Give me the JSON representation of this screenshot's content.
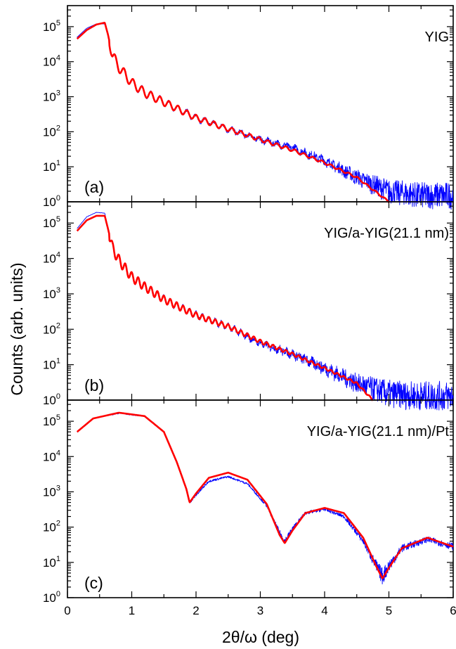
{
  "figure": {
    "ylabel": "Counts (arb. units)",
    "xlabel": "2θ/ω (deg)",
    "x_ticks": [
      "0",
      "1",
      "2",
      "3",
      "4",
      "5",
      "6"
    ],
    "y_ticks": [
      {
        "base": "10",
        "exp": "0"
      },
      {
        "base": "10",
        "exp": "1"
      },
      {
        "base": "10",
        "exp": "2"
      },
      {
        "base": "10",
        "exp": "3"
      },
      {
        "base": "10",
        "exp": "4"
      },
      {
        "base": "10",
        "exp": "5"
      }
    ]
  },
  "colors": {
    "measured": "#0000ff",
    "fit": "#ff0000",
    "axis": "#000000"
  },
  "chart_data": [
    {
      "type": "line",
      "panel_label": "(a)",
      "sample_label": "YIG",
      "xlim": [
        0,
        6
      ],
      "ylim": [
        1,
        600000
      ],
      "y_scale": "log",
      "grid": false,
      "critical_angle": 0.6,
      "fringe_period": 0.14,
      "series": [
        {
          "role": "measured",
          "x": [
            0.15,
            0.3,
            0.45,
            0.58,
            0.63,
            0.7,
            0.8,
            1.0,
            1.2,
            1.5,
            2.0,
            2.5,
            3.0,
            3.5,
            4.0,
            4.5,
            5.0,
            5.5,
            6.0
          ],
          "y": [
            50000,
            90000,
            120000,
            120000,
            60000,
            15000,
            7000,
            2500,
            1300,
            700,
            250,
            120,
            60,
            35,
            15,
            5,
            2,
            1.5,
            1.5
          ]
        },
        {
          "role": "fit",
          "x": [
            0.15,
            0.3,
            0.45,
            0.58,
            0.63,
            0.7,
            0.8,
            1.0,
            1.2,
            1.5,
            2.0,
            2.5,
            3.0,
            3.5,
            4.0,
            4.5,
            5.0
          ],
          "y": [
            45000,
            80000,
            115000,
            130000,
            60000,
            15000,
            7000,
            2500,
            1300,
            700,
            250,
            120,
            60,
            30,
            13,
            5,
            1
          ]
        }
      ]
    },
    {
      "type": "line",
      "panel_label": "(b)",
      "sample_label": "YIG/a-YIG(21.1 nm)",
      "xlim": [
        0,
        6
      ],
      "ylim": [
        1,
        600000
      ],
      "y_scale": "log",
      "grid": false,
      "critical_angle": 0.6,
      "fringe_period": 0.1,
      "series": [
        {
          "role": "measured",
          "x": [
            0.15,
            0.3,
            0.45,
            0.58,
            0.63,
            0.7,
            0.8,
            1.0,
            1.2,
            1.5,
            2.0,
            2.5,
            3.0,
            3.5,
            4.0,
            4.5,
            5.0,
            5.5,
            6.0
          ],
          "y": [
            70000,
            150000,
            200000,
            190000,
            70000,
            20000,
            9000,
            3000,
            1600,
            700,
            250,
            120,
            40,
            20,
            8,
            3,
            1.5,
            1.3,
            1.3
          ]
        },
        {
          "role": "fit",
          "x": [
            0.15,
            0.3,
            0.45,
            0.58,
            0.63,
            0.7,
            0.8,
            1.0,
            1.2,
            1.5,
            2.0,
            2.5,
            3.0,
            3.5,
            4.0,
            4.5,
            4.75
          ],
          "y": [
            60000,
            120000,
            160000,
            160000,
            70000,
            20000,
            9000,
            3000,
            1600,
            700,
            250,
            120,
            45,
            20,
            8,
            3,
            1
          ]
        }
      ]
    },
    {
      "type": "line",
      "panel_label": "(c)",
      "sample_label": "YIG/a-YIG(21.1 nm)/Pt",
      "xlim": [
        0,
        6
      ],
      "ylim": [
        1,
        600000
      ],
      "y_scale": "log",
      "grid": false,
      "series": [
        {
          "role": "measured",
          "x": [
            0.15,
            0.4,
            0.8,
            1.2,
            1.5,
            1.7,
            1.85,
            1.9,
            2.0,
            2.2,
            2.5,
            2.8,
            3.1,
            3.3,
            3.38,
            3.5,
            3.7,
            4.0,
            4.3,
            4.6,
            4.8,
            4.9,
            5.0,
            5.2,
            5.6,
            6.0
          ],
          "y": [
            50000,
            120000,
            170000,
            140000,
            50000,
            7000,
            1200,
            500,
            800,
            2000,
            2700,
            1700,
            400,
            70,
            40,
            90,
            250,
            320,
            200,
            40,
            8,
            4,
            8,
            25,
            45,
            28
          ]
        },
        {
          "role": "fit",
          "x": [
            0.15,
            0.4,
            0.8,
            1.2,
            1.5,
            1.7,
            1.85,
            1.9,
            2.0,
            2.2,
            2.5,
            2.8,
            3.1,
            3.3,
            3.38,
            3.5,
            3.7,
            4.0,
            4.3,
            4.6,
            4.8,
            4.9,
            5.0,
            5.2,
            5.6,
            6.0
          ],
          "y": [
            50000,
            120000,
            175000,
            140000,
            50000,
            7000,
            1200,
            500,
            900,
            2500,
            3500,
            2200,
            450,
            60,
            35,
            80,
            250,
            350,
            250,
            50,
            8,
            3.5,
            7,
            25,
            50,
            28
          ]
        }
      ]
    }
  ]
}
